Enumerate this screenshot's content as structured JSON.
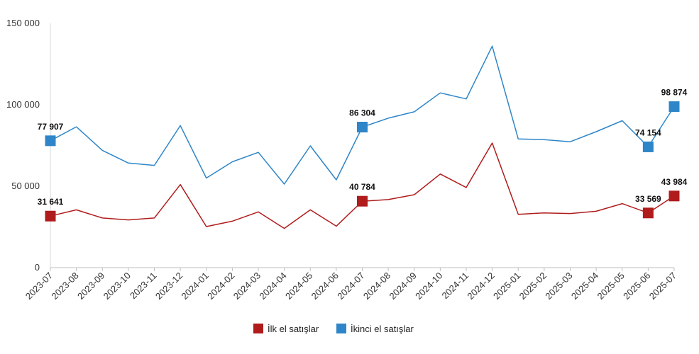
{
  "chart_data": {
    "type": "line",
    "title": "",
    "xlabel": "",
    "ylabel": "",
    "ylim": [
      0,
      150000
    ],
    "yticks": [
      {
        "value": 0,
        "label": "0"
      },
      {
        "value": 50000,
        "label": "50 000"
      },
      {
        "value": 100000,
        "label": "100 000"
      },
      {
        "value": 150000,
        "label": "150 000"
      }
    ],
    "grid": false,
    "legend": "bottom",
    "categories": [
      "2023-07",
      "2023-08",
      "2023-09",
      "2023-10",
      "2023-11",
      "2023-12",
      "2024-01",
      "2024-02",
      "2024-03",
      "2024-04",
      "2024-05",
      "2024-06",
      "2024-07",
      "2024-08",
      "2024-09",
      "2024-10",
      "2024-11",
      "2024-12",
      "2025-01",
      "2025-02",
      "2025-03",
      "2025-04",
      "2025-05",
      "2025-06",
      "2025-07"
    ],
    "series": [
      {
        "name": "İlk el satışlar",
        "color": "#b01c1c",
        "values": [
          31641,
          35500,
          30500,
          29300,
          30500,
          51000,
          25200,
          28500,
          34200,
          24100,
          35500,
          25500,
          40784,
          41800,
          44800,
          57500,
          49200,
          76500,
          32700,
          33600,
          33200,
          34600,
          39300,
          33569,
          43984
        ],
        "labeled_points": [
          {
            "index": 0,
            "label": "31 641"
          },
          {
            "index": 12,
            "label": "40 784"
          },
          {
            "index": 23,
            "label": "33 569"
          },
          {
            "index": 24,
            "label": "43 984"
          }
        ]
      },
      {
        "name": "İkinci el satışlar",
        "color": "#2e86c8",
        "values": [
          77907,
          86500,
          72000,
          64200,
          62800,
          87200,
          55000,
          65000,
          70800,
          51300,
          74800,
          53900,
          86304,
          91800,
          95700,
          107300,
          103600,
          136000,
          79000,
          78600,
          77300,
          83500,
          90200,
          74154,
          98874
        ],
        "labeled_points": [
          {
            "index": 0,
            "label": "77 907"
          },
          {
            "index": 12,
            "label": "86 304"
          },
          {
            "index": 23,
            "label": "74 154"
          },
          {
            "index": 24,
            "label": "98 874"
          }
        ]
      }
    ]
  }
}
